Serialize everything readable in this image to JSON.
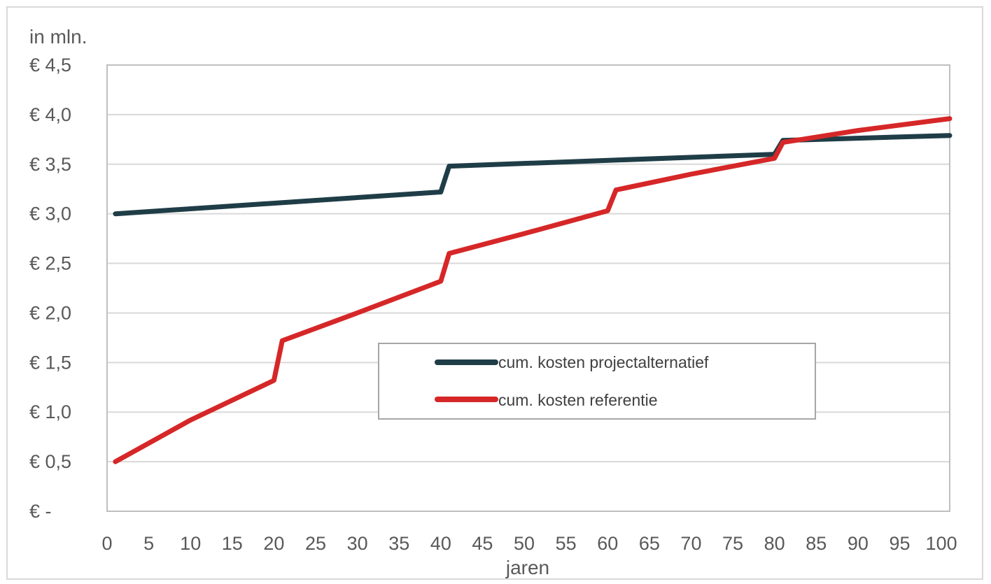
{
  "chart_data": {
    "type": "line",
    "title": "",
    "ylabel": "in mln.",
    "xlabel": "jaren",
    "xlim": [
      0,
      101
    ],
    "ylim": [
      0,
      4.5
    ],
    "x_ticks": [
      0,
      5,
      10,
      15,
      20,
      25,
      30,
      35,
      40,
      45,
      50,
      55,
      60,
      65,
      70,
      75,
      80,
      85,
      90,
      95,
      100
    ],
    "x_tick_labels": [
      "0",
      "5",
      "10",
      "15",
      "20",
      "25",
      "30",
      "35",
      "40",
      "45",
      "50",
      "55",
      "60",
      "65",
      "70",
      "75",
      "80",
      "85",
      "90",
      "95",
      "100"
    ],
    "y_ticks": [
      0,
      0.5,
      1.0,
      1.5,
      2.0,
      2.5,
      3.0,
      3.5,
      4.0,
      4.5
    ],
    "y_tick_labels": [
      "€ -",
      "€ 0,5",
      "€ 1,0",
      "€ 1,5",
      "€ 2,0",
      "€ 2,5",
      "€ 3,0",
      "€ 3,5",
      "€ 4,0",
      "€ 4,5"
    ],
    "grid": "horizontal",
    "legend_position": "center-right",
    "series": [
      {
        "name": "cum. kosten projectalternatief",
        "color": "#1f3d47",
        "points": [
          [
            1,
            3.0
          ],
          [
            40,
            3.22
          ],
          [
            41,
            3.48
          ],
          [
            80,
            3.6
          ],
          [
            81,
            3.74
          ],
          [
            101,
            3.79
          ]
        ]
      },
      {
        "name": "cum. kosten referentie",
        "color": "#d62728",
        "points": [
          [
            1,
            0.5
          ],
          [
            10,
            0.92
          ],
          [
            20,
            1.32
          ],
          [
            21,
            1.72
          ],
          [
            30,
            2.0
          ],
          [
            40,
            2.32
          ],
          [
            41,
            2.6
          ],
          [
            50,
            2.8
          ],
          [
            60,
            3.03
          ],
          [
            61,
            3.24
          ],
          [
            70,
            3.4
          ],
          [
            80,
            3.56
          ],
          [
            81,
            3.72
          ],
          [
            90,
            3.84
          ],
          [
            101,
            3.96
          ]
        ]
      }
    ]
  }
}
